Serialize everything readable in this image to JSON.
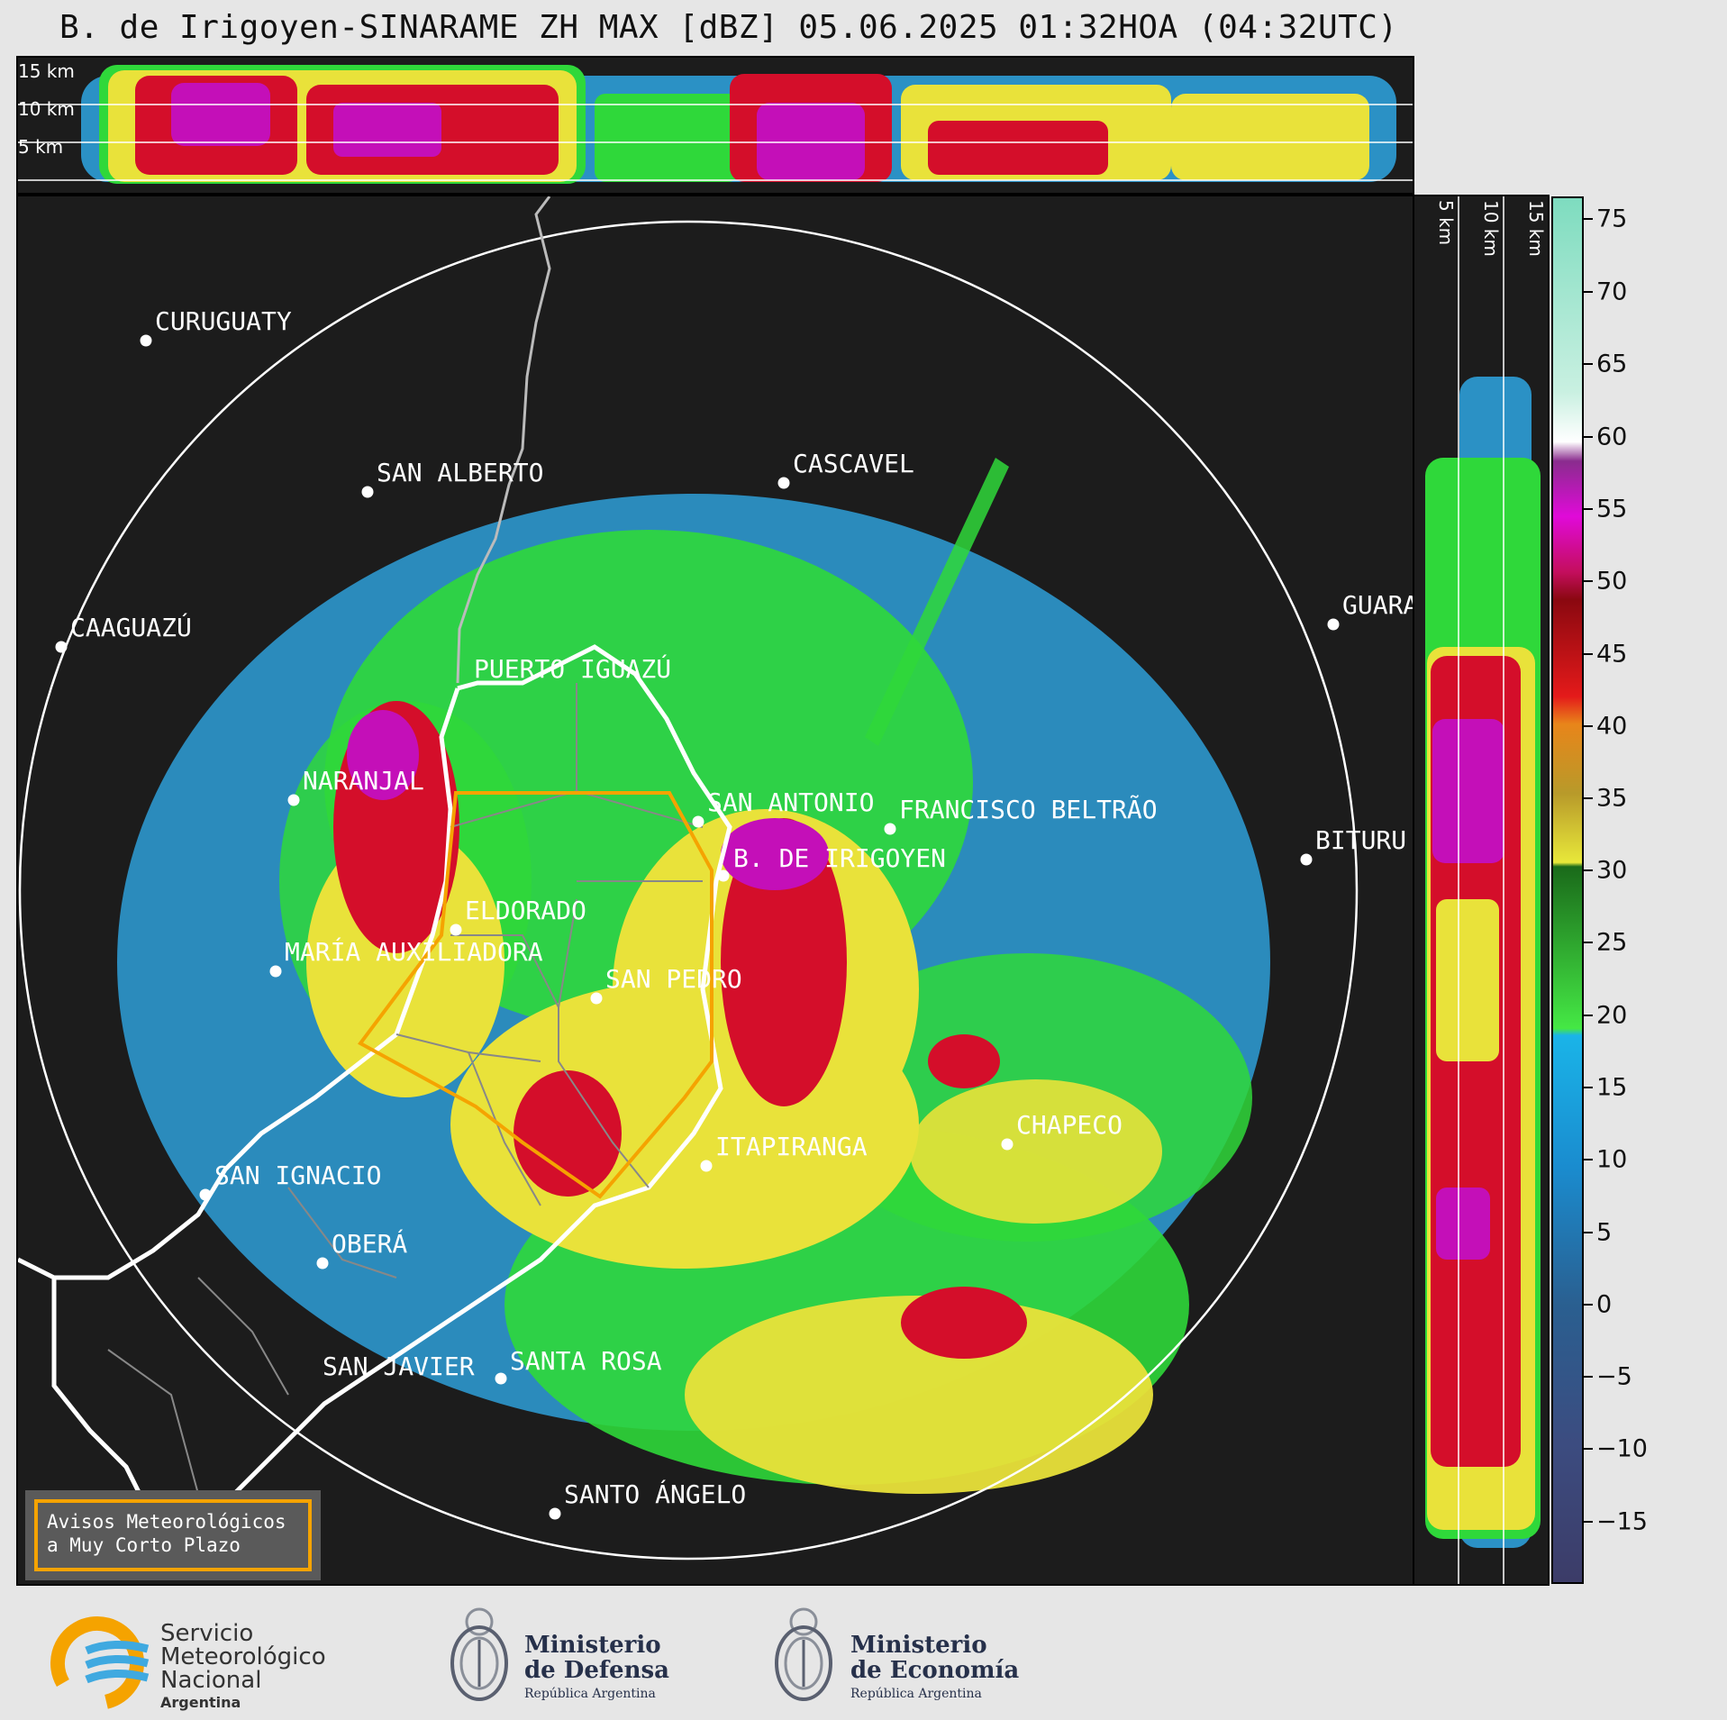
{
  "title": "B. de Irigoyen-SINARAME ZH MAX [dBZ] 05.06.2025 01:32HOA (04:32UTC)",
  "top_panel": {
    "height_labels": [
      "15 km",
      "10 km",
      "5 km"
    ]
  },
  "side_panel": {
    "height_labels": [
      "5 km",
      "10 km",
      "15 km"
    ]
  },
  "colorbar": {
    "unit": "dBZ",
    "ticks": [
      "75",
      "70",
      "65",
      "60",
      "55",
      "50",
      "45",
      "40",
      "35",
      "30",
      "25",
      "20",
      "15",
      "10",
      "5",
      "0",
      "−5",
      "−10",
      "−15"
    ]
  },
  "cities": [
    {
      "name": "CURUGUATY"
    },
    {
      "name": "SAN ALBERTO"
    },
    {
      "name": "CASCAVEL"
    },
    {
      "name": "CAAGUAZÚ"
    },
    {
      "name": "GUARA"
    },
    {
      "name": "PUERTO IGUAZÚ"
    },
    {
      "name": "NARANJAL"
    },
    {
      "name": "SAN ANTONIO"
    },
    {
      "name": "FRANCISCO BELTRÃO"
    },
    {
      "name": "BITURU"
    },
    {
      "name": "B. DE IRIGOYEN"
    },
    {
      "name": "ELDORADO"
    },
    {
      "name": "MARÍA AUXILIADORA"
    },
    {
      "name": "SAN PEDRO"
    },
    {
      "name": "CHAPECO"
    },
    {
      "name": "ITAPIRANGA"
    },
    {
      "name": "SAN IGNACIO"
    },
    {
      "name": "OBERÁ"
    },
    {
      "name": "SAN JAVIER"
    },
    {
      "name": "SANTA ROSA"
    },
    {
      "name": "SANTO ÁNGELO"
    }
  ],
  "warning_box": {
    "line1": "Avisos Meteorológicos",
    "line2": "a Muy Corto Plazo"
  },
  "footer": {
    "smn": {
      "line1": "Servicio",
      "line2": "Meteorológico",
      "line3": "Nacional",
      "line4": "Argentina"
    },
    "defensa": {
      "line1": "Ministerio",
      "line2": "de Defensa",
      "line3": "República Argentina"
    },
    "economia": {
      "line1": "Ministerio",
      "line2": "de Economía",
      "line3": "República Argentina"
    }
  },
  "colors": {
    "background": "#1c1c1c",
    "range_ring": "#ffffff",
    "province_border": "#ffffff",
    "warning_polygon": "#f5a300",
    "smn_orange": "#f5a300",
    "smn_blue": "#3fa9e0"
  }
}
